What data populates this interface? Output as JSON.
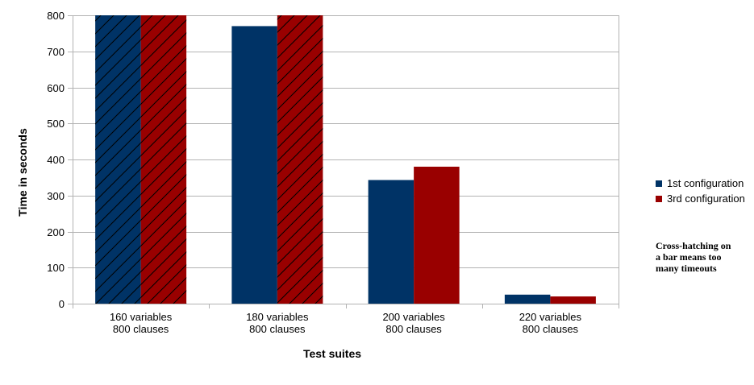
{
  "chart_data": {
    "type": "bar",
    "title": "",
    "xlabel": "Test suites",
    "ylabel": "Time in seconds",
    "ylim": [
      0,
      800
    ],
    "yticks": [
      0,
      100,
      200,
      300,
      400,
      500,
      600,
      700,
      800
    ],
    "grid": true,
    "legend_position": "right",
    "categories": [
      [
        "160 variables",
        "800 clauses"
      ],
      [
        "180 variables",
        "800 clauses"
      ],
      [
        "200 variables",
        "800 clauses"
      ],
      [
        "220 variables",
        "800 clauses"
      ]
    ],
    "series": [
      {
        "name": "1st configuration",
        "color": "#003366",
        "values": [
          800,
          770,
          343,
          25
        ],
        "hatched": [
          true,
          false,
          false,
          false
        ]
      },
      {
        "name": "3rd configuration",
        "color": "#990000",
        "values": [
          800,
          800,
          380,
          20
        ],
        "hatched": [
          true,
          true,
          false,
          false
        ]
      }
    ],
    "note": [
      "Cross-hatching on",
      "a bar means too",
      "many timeouts"
    ]
  }
}
